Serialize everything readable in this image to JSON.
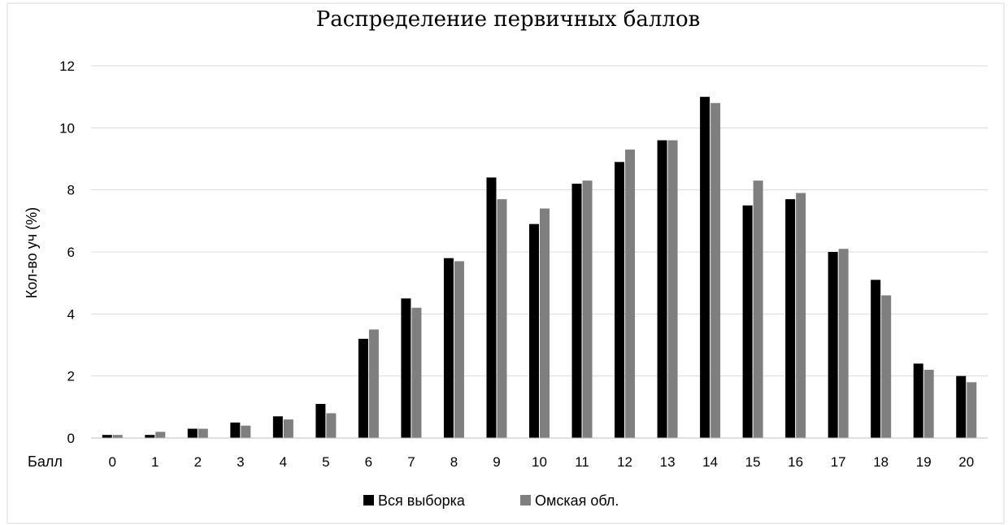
{
  "chart_data": {
    "type": "bar",
    "title": "Распределение первичных баллов",
    "ylabel": "Кол-во уч (%)",
    "xlabel": "Балл",
    "ylim": [
      0,
      12
    ],
    "yticks": [
      0,
      2,
      4,
      6,
      8,
      10,
      12
    ],
    "grid": true,
    "legend_position": "bottom",
    "categories": [
      "0",
      "1",
      "2",
      "3",
      "4",
      "5",
      "6",
      "7",
      "8",
      "9",
      "10",
      "11",
      "12",
      "13",
      "14",
      "15",
      "16",
      "17",
      "18",
      "19",
      "20"
    ],
    "series": [
      {
        "name": "Вся выборка",
        "color": "#000000",
        "values": [
          0.1,
          0.1,
          0.3,
          0.5,
          0.7,
          1.1,
          3.2,
          4.5,
          5.8,
          8.4,
          6.9,
          8.2,
          8.9,
          9.6,
          11.0,
          7.5,
          7.7,
          6.0,
          5.1,
          2.4,
          2.0
        ]
      },
      {
        "name": "Омская обл.",
        "color": "#7f7f7f",
        "values": [
          0.1,
          0.2,
          0.3,
          0.4,
          0.6,
          0.8,
          3.5,
          4.2,
          5.7,
          7.7,
          7.4,
          8.3,
          9.3,
          9.6,
          10.8,
          8.3,
          7.9,
          6.1,
          4.6,
          2.2,
          1.8
        ]
      }
    ]
  }
}
